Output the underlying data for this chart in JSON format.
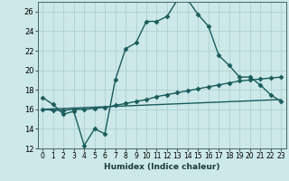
{
  "title": "",
  "xlabel": "Humidex (Indice chaleur)",
  "xlim": [
    -0.5,
    23.5
  ],
  "ylim": [
    12,
    27
  ],
  "yticks": [
    12,
    14,
    16,
    18,
    20,
    22,
    24,
    26
  ],
  "xticks": [
    0,
    1,
    2,
    3,
    4,
    5,
    6,
    7,
    8,
    9,
    10,
    11,
    12,
    13,
    14,
    15,
    16,
    17,
    18,
    19,
    20,
    21,
    22,
    23
  ],
  "bg_color": "#cce8e8",
  "grid_color": "#aacccc",
  "line_color": "#1a5c5c",
  "line1_x": [
    0,
    1,
    2,
    3,
    4,
    5,
    6,
    7,
    8,
    9,
    10,
    11,
    12,
    13,
    14,
    15,
    16,
    17,
    18,
    19,
    20,
    21,
    22,
    23
  ],
  "line1_y": [
    17.2,
    16.5,
    15.5,
    15.8,
    12.3,
    14.0,
    13.5,
    19.0,
    22.2,
    22.8,
    25.0,
    25.0,
    25.5,
    27.2,
    27.2,
    25.7,
    24.5,
    21.5,
    20.5,
    19.3,
    19.3,
    18.5,
    17.5,
    16.8
  ],
  "line2_x": [
    0,
    1,
    2,
    3,
    4,
    5,
    6,
    7,
    8,
    9,
    10,
    11,
    12,
    13,
    14,
    15,
    16,
    17,
    18,
    19,
    20,
    21,
    22,
    23
  ],
  "line2_y": [
    16.0,
    15.9,
    15.9,
    16.0,
    16.0,
    16.1,
    16.2,
    16.4,
    16.6,
    16.8,
    17.0,
    17.3,
    17.5,
    17.7,
    17.9,
    18.1,
    18.3,
    18.5,
    18.7,
    18.9,
    19.0,
    19.1,
    19.2,
    19.3
  ],
  "line3_x": [
    0,
    23
  ],
  "line3_y": [
    16.0,
    17.0
  ],
  "markersize": 2.5,
  "linewidth": 1.0,
  "xlabel_fontsize": 6.5,
  "tick_fontsize": 5.5
}
